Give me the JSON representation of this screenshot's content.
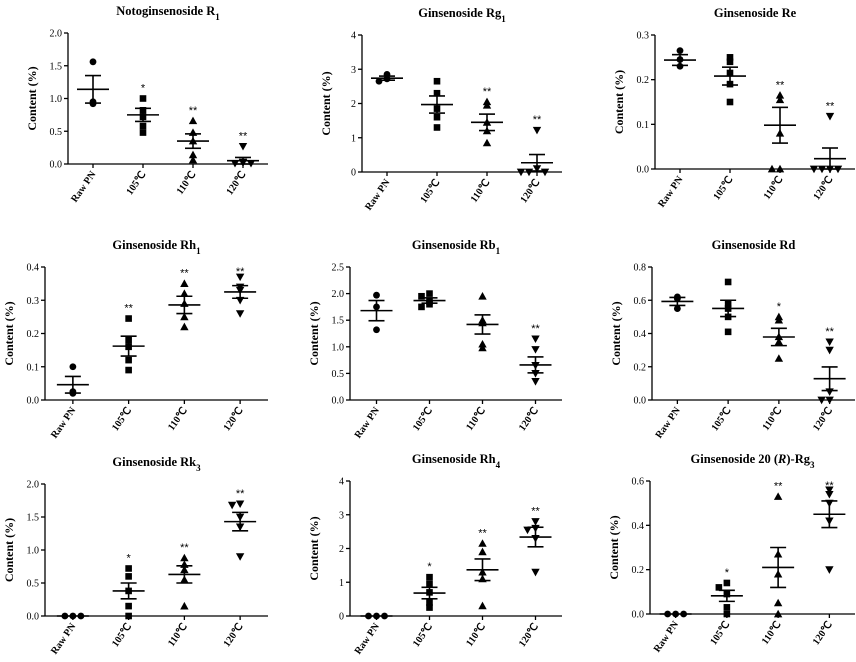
{
  "chart_data": [
    {
      "type": "scatter",
      "title": "Notoginsenoside R",
      "title_sub": "1",
      "ylabel": "Content (%)",
      "ylim": [
        0,
        2.0
      ],
      "yticks": [
        "0.0",
        "0.5",
        "1.0",
        "1.5",
        "2.0"
      ],
      "ytick_values": [
        0,
        0.5,
        1.0,
        1.5,
        2.0
      ],
      "categories": [
        "Raw PN",
        "105℃",
        "110℃",
        "120℃"
      ],
      "markers": [
        "circle",
        "square",
        "triangle-up",
        "triangle-down"
      ],
      "points": [
        [
          1.56,
          0.95,
          0.92
        ],
        [
          1.0,
          0.82,
          0.72,
          0.58,
          0.48
        ],
        [
          0.66,
          0.48,
          0.35,
          0.14,
          0.06
        ],
        [
          0.27,
          0.03,
          0.02,
          0.01,
          0.01
        ]
      ],
      "mean": [
        1.14,
        0.75,
        0.35,
        0.05
      ],
      "sem": [
        0.21,
        0.1,
        0.11,
        0.05
      ],
      "sig": [
        "",
        "*",
        "**",
        "**"
      ]
    },
    {
      "type": "scatter",
      "title": "Ginsenoside Rg",
      "title_sub": "1",
      "ylabel": "Content (%)",
      "ylim": [
        0,
        4
      ],
      "yticks": [
        "0",
        "1",
        "2",
        "3",
        "4"
      ],
      "ytick_values": [
        0,
        1,
        2,
        3,
        4
      ],
      "categories": [
        "Raw PN",
        "105℃",
        "110℃",
        "120℃"
      ],
      "markers": [
        "circle",
        "square",
        "triangle-up",
        "triangle-down"
      ],
      "points": [
        [
          2.85,
          2.72,
          2.65
        ],
        [
          2.65,
          2.3,
          1.85,
          1.6,
          1.3
        ],
        [
          2.05,
          1.95,
          1.45,
          1.2,
          0.85
        ],
        [
          1.22,
          0.1,
          0.0,
          0.0,
          0.0
        ]
      ],
      "mean": [
        2.74,
        1.97,
        1.45,
        0.27
      ],
      "sem": [
        0.06,
        0.25,
        0.24,
        0.24
      ],
      "sig": [
        "",
        "",
        "**",
        "**"
      ]
    },
    {
      "type": "scatter",
      "title": "Ginsenoside Re",
      "title_sub": "",
      "ylabel": "Content (%)",
      "ylim": [
        0,
        0.3
      ],
      "yticks": [
        "0.0",
        "0.1",
        "0.2",
        "0.3"
      ],
      "ytick_values": [
        0,
        0.1,
        0.2,
        0.3
      ],
      "categories": [
        "Raw PN",
        "105℃",
        "110℃",
        "120℃"
      ],
      "markers": [
        "circle",
        "square",
        "triangle-up",
        "triangle-down"
      ],
      "points": [
        [
          0.265,
          0.245,
          0.23
        ],
        [
          0.25,
          0.24,
          0.215,
          0.19,
          0.15
        ],
        [
          0.165,
          0.155,
          0.08,
          0.0,
          0.0
        ],
        [
          0.118,
          0.0,
          0.0,
          0.0,
          0.0
        ]
      ],
      "mean": [
        0.244,
        0.208,
        0.098,
        0.023
      ],
      "sem": [
        0.012,
        0.02,
        0.04,
        0.024
      ],
      "sig": [
        "",
        "",
        "**",
        "**"
      ]
    },
    {
      "type": "scatter",
      "title": "Ginsenoside Rh",
      "title_sub": "1",
      "ylabel": "Content (%)",
      "ylim": [
        0,
        0.4
      ],
      "yticks": [
        "0.0",
        "0.1",
        "0.2",
        "0.3",
        "0.4"
      ],
      "ytick_values": [
        0,
        0.1,
        0.2,
        0.3,
        0.4
      ],
      "categories": [
        "Raw PN",
        "105℃",
        "110℃",
        "120℃"
      ],
      "markers": [
        "circle",
        "square",
        "triangle-up",
        "triangle-down"
      ],
      "points": [
        [
          0.1,
          0.025,
          0.02
        ],
        [
          0.245,
          0.18,
          0.16,
          0.12,
          0.09
        ],
        [
          0.35,
          0.32,
          0.29,
          0.25,
          0.22
        ],
        [
          0.37,
          0.34,
          0.33,
          0.3,
          0.26
        ]
      ],
      "mean": [
        0.046,
        0.162,
        0.286,
        0.325
      ],
      "sem": [
        0.025,
        0.03,
        0.026,
        0.019
      ],
      "sig": [
        "",
        "**",
        "**",
        "**"
      ]
    },
    {
      "type": "scatter",
      "title": "Ginsenoside Rb",
      "title_sub": "1",
      "ylabel": "Content (%)",
      "ylim": [
        0,
        2.5
      ],
      "yticks": [
        "0.0",
        "0.5",
        "1.0",
        "1.5",
        "2.0",
        "2.5"
      ],
      "ytick_values": [
        0,
        0.5,
        1.0,
        1.5,
        2.0,
        2.5
      ],
      "categories": [
        "Raw PN",
        "105℃",
        "110℃",
        "120℃"
      ],
      "markers": [
        "circle",
        "square",
        "triangle-up",
        "triangle-down"
      ],
      "points": [
        [
          1.97,
          1.75,
          1.32
        ],
        [
          2.0,
          1.95,
          1.85,
          1.8,
          1.75
        ],
        [
          1.95,
          1.5,
          1.45,
          1.05,
          0.98
        ],
        [
          1.15,
          0.95,
          0.65,
          0.5,
          0.35
        ]
      ],
      "mean": [
        1.68,
        1.87,
        1.42,
        0.66
      ],
      "sem": [
        0.19,
        0.05,
        0.18,
        0.15
      ],
      "sig": [
        "",
        "",
        "",
        "**"
      ]
    },
    {
      "type": "scatter",
      "title": "Ginsenoside Rd",
      "title_sub": "",
      "ylabel": "Content (%)",
      "ylim": [
        0,
        0.8
      ],
      "yticks": [
        "0.0",
        "0.2",
        "0.4",
        "0.6",
        "0.8"
      ],
      "ytick_values": [
        0,
        0.2,
        0.4,
        0.6,
        0.8
      ],
      "categories": [
        "Raw PN",
        "105℃",
        "110℃",
        "120℃"
      ],
      "markers": [
        "circle",
        "square",
        "triangle-up",
        "triangle-down"
      ],
      "points": [
        [
          0.62,
          0.61,
          0.55
        ],
        [
          0.71,
          0.58,
          0.55,
          0.5,
          0.41
        ],
        [
          0.5,
          0.48,
          0.38,
          0.35,
          0.25
        ],
        [
          0.35,
          0.3,
          0.05,
          0.0,
          0.0
        ]
      ],
      "mean": [
        0.593,
        0.551,
        0.379,
        0.128
      ],
      "sem": [
        0.024,
        0.049,
        0.052,
        0.071
      ],
      "sig": [
        "",
        "",
        "*",
        "**"
      ]
    },
    {
      "type": "scatter",
      "title": "Ginsenoside Rk",
      "title_sub": "3",
      "ylabel": "Content (%)",
      "ylim": [
        0,
        2.0
      ],
      "yticks": [
        "0.0",
        "0.5",
        "1.0",
        "1.5",
        "2.0"
      ],
      "ytick_values": [
        0,
        0.5,
        1.0,
        1.5,
        2.0
      ],
      "categories": [
        "Raw PN",
        "105℃",
        "110℃",
        "120℃"
      ],
      "markers": [
        "circle",
        "square",
        "triangle-up",
        "triangle-down"
      ],
      "points": [
        [
          0.0,
          0.0,
          0.0
        ],
        [
          0.72,
          0.6,
          0.38,
          0.15,
          0.0
        ],
        [
          0.88,
          0.78,
          0.7,
          0.55,
          0.15
        ],
        [
          1.7,
          1.68,
          1.5,
          1.35,
          0.9
        ]
      ],
      "mean": [
        0.0,
        0.38,
        0.63,
        1.43
      ],
      "sem": [
        0.0,
        0.12,
        0.13,
        0.14
      ],
      "sig": [
        "",
        "*",
        "**",
        "**"
      ]
    },
    {
      "type": "scatter",
      "title": "Ginsenoside Rh",
      "title_sub": "4",
      "ylabel": "Content (%)",
      "ylim": [
        0,
        4
      ],
      "yticks": [
        "0",
        "1",
        "2",
        "3",
        "4"
      ],
      "ytick_values": [
        0,
        1,
        2,
        3,
        4
      ],
      "categories": [
        "Raw PN",
        "105℃",
        "110℃",
        "120℃"
      ],
      "markers": [
        "circle",
        "square",
        "triangle-up",
        "triangle-down"
      ],
      "points": [
        [
          0.0,
          0.0,
          0.0
        ],
        [
          1.15,
          0.95,
          0.7,
          0.4,
          0.25
        ],
        [
          2.15,
          1.9,
          1.3,
          1.1,
          0.3
        ],
        [
          2.8,
          2.6,
          2.55,
          2.3,
          1.3
        ]
      ],
      "mean": [
        0.0,
        0.68,
        1.37,
        2.34
      ],
      "sem": [
        0.0,
        0.17,
        0.32,
        0.29
      ],
      "sig": [
        "",
        "*",
        "**",
        "**"
      ]
    },
    {
      "type": "scatter",
      "title": "Ginsenoside 20 (",
      "title_r": "R",
      "title_tail": ")-Rg",
      "title_sub": "3",
      "ylabel": "Content (%)",
      "ylim": [
        0,
        0.6
      ],
      "yticks": [
        "0.0",
        "0.2",
        "0.4",
        "0.6"
      ],
      "ytick_values": [
        0,
        0.2,
        0.4,
        0.6
      ],
      "categories": [
        "Raw PN",
        "105℃",
        "110℃",
        "120℃"
      ],
      "markers": [
        "circle",
        "square",
        "triangle-up",
        "triangle-down"
      ],
      "points": [
        [
          0.0,
          0.0,
          0.0
        ],
        [
          0.14,
          0.12,
          0.09,
          0.03,
          0.0
        ],
        [
          0.53,
          0.27,
          0.18,
          0.05,
          0.0
        ],
        [
          0.56,
          0.54,
          0.5,
          0.42,
          0.2
        ]
      ],
      "mean": [
        0.0,
        0.082,
        0.21,
        0.45
      ],
      "sem": [
        0.0,
        0.025,
        0.09,
        0.06
      ],
      "sig": [
        "",
        "*",
        "**",
        "**"
      ]
    }
  ]
}
